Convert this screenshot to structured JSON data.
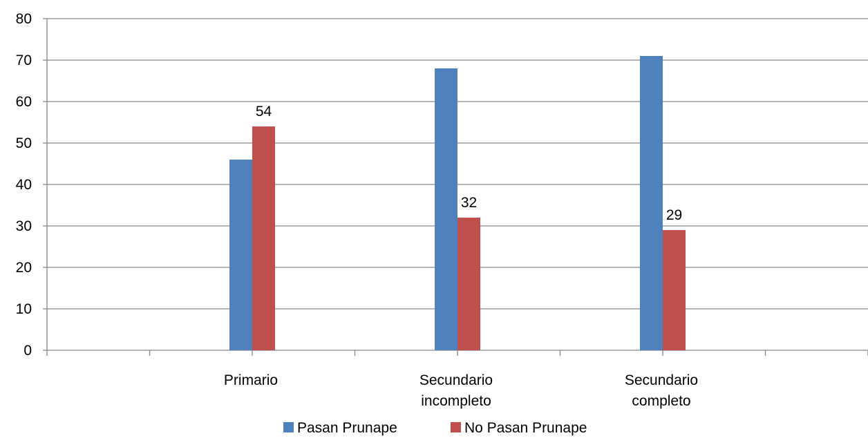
{
  "chart_data": {
    "type": "bar",
    "title": "",
    "xlabel": "",
    "ylabel": "",
    "ylim": [
      0,
      80
    ],
    "yticks": [
      0,
      10,
      20,
      30,
      40,
      50,
      60,
      70,
      80
    ],
    "grid": true,
    "legend_position": "bottom",
    "category_slots": 8,
    "categories": [
      [
        "Primario"
      ],
      [
        "Secundario",
        "incompleto"
      ],
      [
        "Secundario",
        "completo"
      ]
    ],
    "series": [
      {
        "name": "Pasan Prunape",
        "color": "#4f81bd",
        "values": [
          46,
          68,
          71
        ],
        "labels": [
          null,
          null,
          null
        ]
      },
      {
        "name": "No Pasan Prunape",
        "color": "#c0504d",
        "values": [
          54,
          32,
          29
        ],
        "labels": [
          "54",
          "32",
          "29"
        ]
      }
    ]
  }
}
